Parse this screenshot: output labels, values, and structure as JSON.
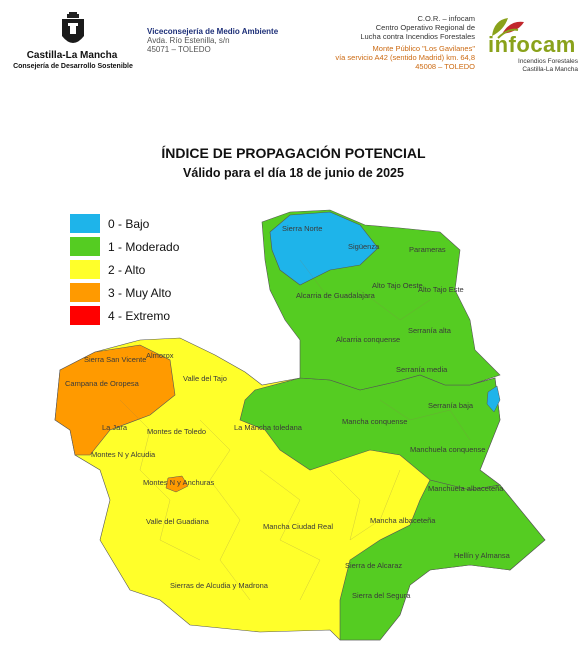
{
  "header": {
    "region_name": "Castilla-La Mancha",
    "region_department": "Consejería de Desarrollo Sostenible",
    "vice_title": "Viceconsejería de Medio Ambiente",
    "vice_address_1": "Avda. Río Estenilla, s/n",
    "vice_address_2": "45071 – TOLEDO",
    "cor_title": "C.O.R. – infocam",
    "cor_line_1": "Centro Operativo Regional de",
    "cor_line_2": "Lucha contra Incendios Forestales",
    "cor_addr_1": "Monte Público \"Los Gavilanes\"",
    "cor_addr_2": "vía servicio A42 (sentido Madrid) km. 64,8",
    "cor_addr_3": "45008 – TOLEDO",
    "logo_text": "infocam",
    "logo_sub_1": "Incendios Forestales",
    "logo_sub_2": "Castilla-La Mancha"
  },
  "title": "ÍNDICE DE PROPAGACIÓN POTENCIAL",
  "subtitle": "Válido para el día  18 de junio de 2025",
  "legend": [
    {
      "label": "0 - Bajo",
      "color": "#1eb4ea"
    },
    {
      "label": "1 - Moderado",
      "color": "#55cc22"
    },
    {
      "label": "2 - Alto",
      "color": "#ffff2a"
    },
    {
      "label": "3 - Muy Alto",
      "color": "#ff9a00"
    },
    {
      "label": "4 - Extremo",
      "color": "#ff0000"
    }
  ],
  "zones": {
    "sierra_norte": "Sierra Norte",
    "siguenza": "Sigüenza",
    "parameras": "Parameras",
    "alcarria_guadalajara": "Alcarria de Guadalajara",
    "alto_tajo_oeste": "Alto Tajo Oeste",
    "alto_tajo_este": "Alto Tajo Este",
    "serrania_alta": "Serranía alta",
    "alcarria_conquense": "Alcarria conquense",
    "serrania_media": "Serranía media",
    "serrania_baja": "Serranía baja",
    "sierra_san_vicente": "Sierra San Vicente",
    "almorox": "Almorox",
    "valle_tajo": "Valle del Tajo",
    "campana_oropesa": "Campana de Oropesa",
    "la_jara": "La Jara",
    "montes_toledo": "Montes de Toledo",
    "montes_n_alcudia": "Montes N y Alcudia",
    "la_mancha_toledana": "La Mancha toledana",
    "mancha_conquense": "Mancha conquense",
    "manchuela_conquense": "Manchuela conquense",
    "montes_n_anchuras": "Montes N y Anchuras",
    "manchuela_albacetena": "Manchuela albaceteña",
    "valle_guadiana": "Valle del Guadiana",
    "mancha_ciudad_real": "Mancha Ciudad Real",
    "mancha_albacetena": "Mancha albaceteña",
    "hellin_almansa": "Hellín y Almansa",
    "sierra_alcaraz": "Sierra de Alcaraz",
    "sierras_alcudia_madrona": "Sierras de Alcudia y Madrona",
    "sierra_segura": "Sierra del Segura"
  }
}
